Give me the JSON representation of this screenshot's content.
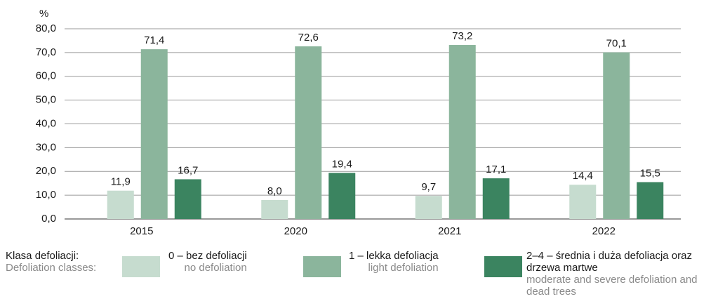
{
  "chart_data": {
    "type": "bar",
    "y_label": "%",
    "categories": [
      "2015",
      "2020",
      "2021",
      "2022"
    ],
    "series": [
      {
        "name": "0 – bez defoliacji",
        "name_en": "no defoliation",
        "color": "#c6dccf",
        "values": [
          11.9,
          8.0,
          9.7,
          14.4
        ],
        "value_labels": [
          "11,9",
          "8,0",
          "9,7",
          "14,4"
        ]
      },
      {
        "name": "1 – lekka defoliacja",
        "name_en": "light defoliation",
        "color": "#8bb59c",
        "values": [
          71.4,
          72.6,
          73.2,
          70.1
        ],
        "value_labels": [
          "71,4",
          "72,6",
          "73,2",
          "70,1"
        ]
      },
      {
        "name": "2–4 – średnia i duża defoliacja oraz drzewa martwe",
        "name_en": "moderate and severe defoliation and dead trees",
        "color": "#3b8460",
        "values": [
          16.7,
          19.4,
          17.1,
          15.5
        ],
        "value_labels": [
          "16,7",
          "19,4",
          "17,1",
          "15,5"
        ]
      }
    ],
    "ylim": [
      0,
      80
    ],
    "yticks": [
      {
        "value": 0,
        "label": "0,0"
      },
      {
        "value": 10,
        "label": "10,0"
      },
      {
        "value": 20,
        "label": "20,0"
      },
      {
        "value": 30,
        "label": "30,0"
      },
      {
        "value": 40,
        "label": "40,0"
      },
      {
        "value": 50,
        "label": "50,0"
      },
      {
        "value": 60,
        "label": "60,0"
      },
      {
        "value": 70,
        "label": "70,0"
      },
      {
        "value": 80,
        "label": "80,0"
      }
    ],
    "grid": true,
    "legend_title": "Klasa defoliacji:",
    "legend_title_en": "Defoliation classes:"
  }
}
